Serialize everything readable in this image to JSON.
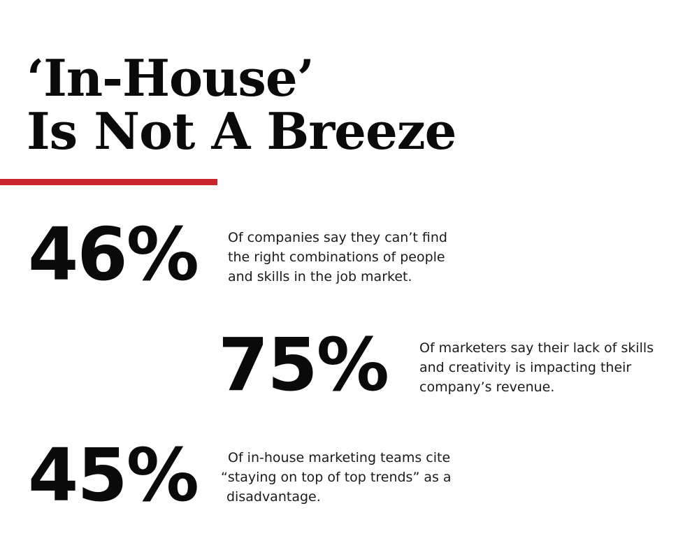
{
  "title": {
    "line1": "‘In-House’",
    "line2": "Is Not A Breeze"
  },
  "colors": {
    "accent": "#c8282d",
    "text": "#0a0a0a",
    "background": "#ffffff"
  },
  "stats": [
    {
      "value": "46%",
      "description_lines": [
        "Of companies say they can’t find",
        "the right combinations of people",
        "and skills in the job market."
      ]
    },
    {
      "value": "75%",
      "description_lines": [
        "Of marketers say their lack of skills",
        "and creativity is impacting their",
        "company’s revenue."
      ]
    },
    {
      "value": "45%",
      "description_lines": [
        "Of in-house marketing teams cite",
        "“staying on top of top trends” as a",
        "disadvantage."
      ]
    }
  ]
}
